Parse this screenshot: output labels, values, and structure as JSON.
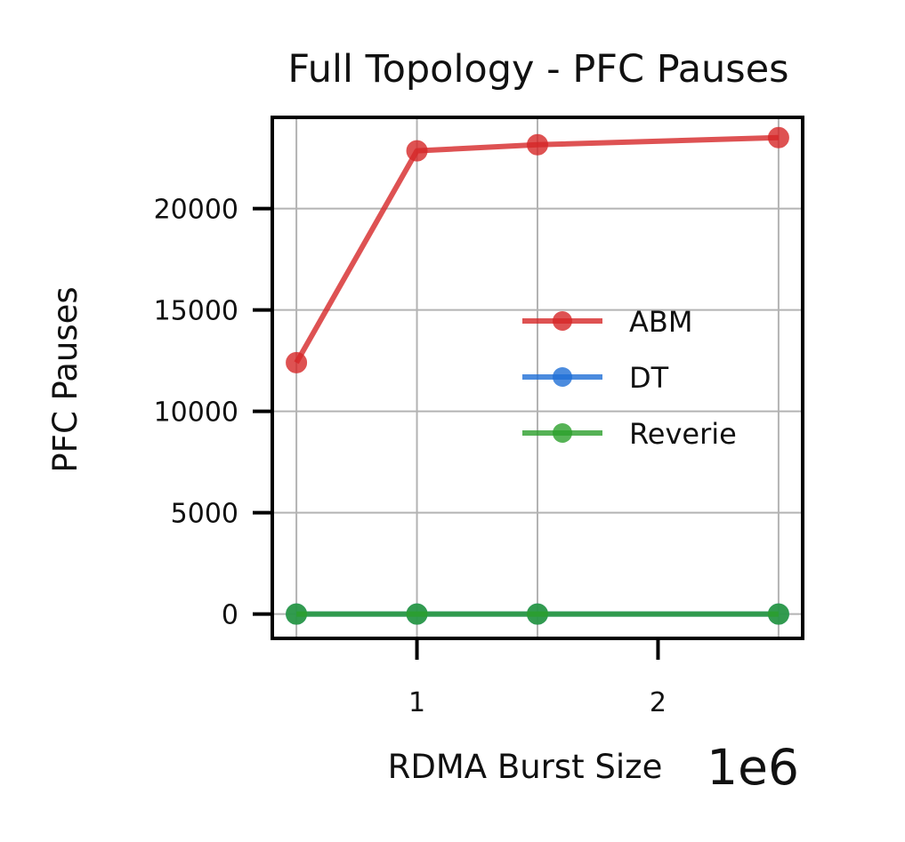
{
  "chart_data": {
    "type": "line",
    "title": "Full Topology - PFC Pauses",
    "xlabel": "RDMA Burst Size",
    "ylabel": "PFC Pauses",
    "x_offset_label": "1e6",
    "x": [
      500000,
      1000000,
      1500000,
      2500000
    ],
    "xlim": [
      400000,
      2600000
    ],
    "ylim": [
      -1200,
      24500
    ],
    "xticks": [
      {
        "value": 1000000,
        "label": "1"
      },
      {
        "value": 2000000,
        "label": "2"
      }
    ],
    "yticks": [
      {
        "value": 0,
        "label": "0"
      },
      {
        "value": 5000,
        "label": "5000"
      },
      {
        "value": 10000,
        "label": "10000"
      },
      {
        "value": 15000,
        "label": "15000"
      },
      {
        "value": 20000,
        "label": "20000"
      }
    ],
    "grid": true,
    "legend_position": "center-right",
    "series": [
      {
        "name": "ABM",
        "color": "#d62728",
        "values": [
          12400,
          22850,
          23150,
          23500
        ]
      },
      {
        "name": "DT",
        "color": "#1f6fd6",
        "values": [
          0,
          0,
          0,
          0
        ]
      },
      {
        "name": "Reverie",
        "color": "#2ca02c",
        "values": [
          0,
          0,
          0,
          0
        ]
      }
    ]
  }
}
